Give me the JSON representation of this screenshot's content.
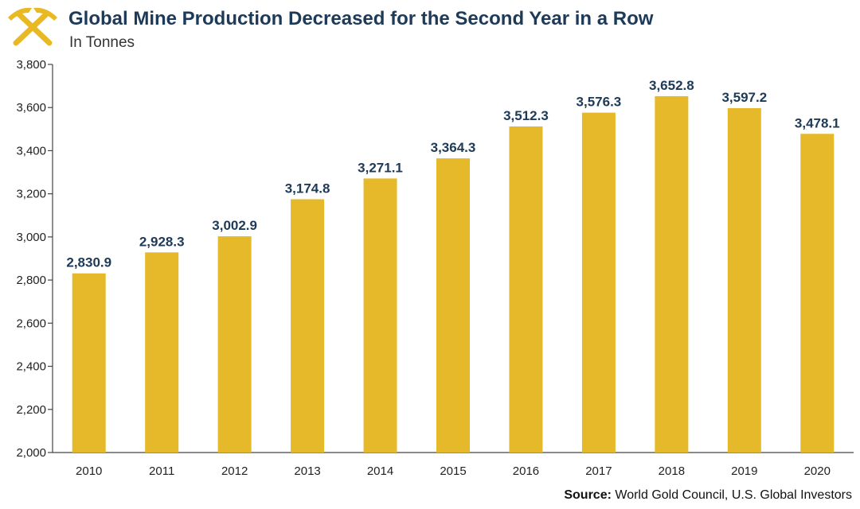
{
  "header": {
    "title": "Global Mine Production Decreased for the Second Year in a Row",
    "subtitle": "In Tonnes"
  },
  "source": {
    "label": "Source:",
    "text": "World Gold Council, U.S. Global Investors"
  },
  "logo": {
    "icon": "crossed-pickaxes-icon",
    "color": "#e8b923"
  },
  "colors": {
    "bar": "#e6b92b",
    "label": "#1d3a58",
    "axis": "#444444"
  },
  "chart_data": {
    "type": "bar",
    "title": "Global Mine Production Decreased for the Second Year in a Row",
    "subtitle": "In Tonnes",
    "categories": [
      "2010",
      "2011",
      "2012",
      "2013",
      "2014",
      "2015",
      "2016",
      "2017",
      "2018",
      "2019",
      "2020"
    ],
    "values": [
      2830.9,
      2928.3,
      3002.9,
      3174.8,
      3271.1,
      3364.3,
      3512.3,
      3576.3,
      3652.8,
      3597.2,
      3478.1
    ],
    "value_labels": [
      "2,830.9",
      "2,928.3",
      "3,002.9",
      "3,174.8",
      "3,271.1",
      "3,364.3",
      "3,512.3",
      "3,576.3",
      "3,652.8",
      "3,597.2",
      "3,478.1"
    ],
    "ylim": [
      2000,
      3800
    ],
    "yticks": [
      2000,
      2200,
      2400,
      2600,
      2800,
      3000,
      3200,
      3400,
      3600,
      3800
    ],
    "ytick_labels": [
      "2,000",
      "2,200",
      "2,400",
      "2,600",
      "2,800",
      "3,000",
      "3,200",
      "3,400",
      "3,600",
      "3,800"
    ],
    "xlabel": "",
    "ylabel": "",
    "grid": false,
    "legend": "none"
  }
}
